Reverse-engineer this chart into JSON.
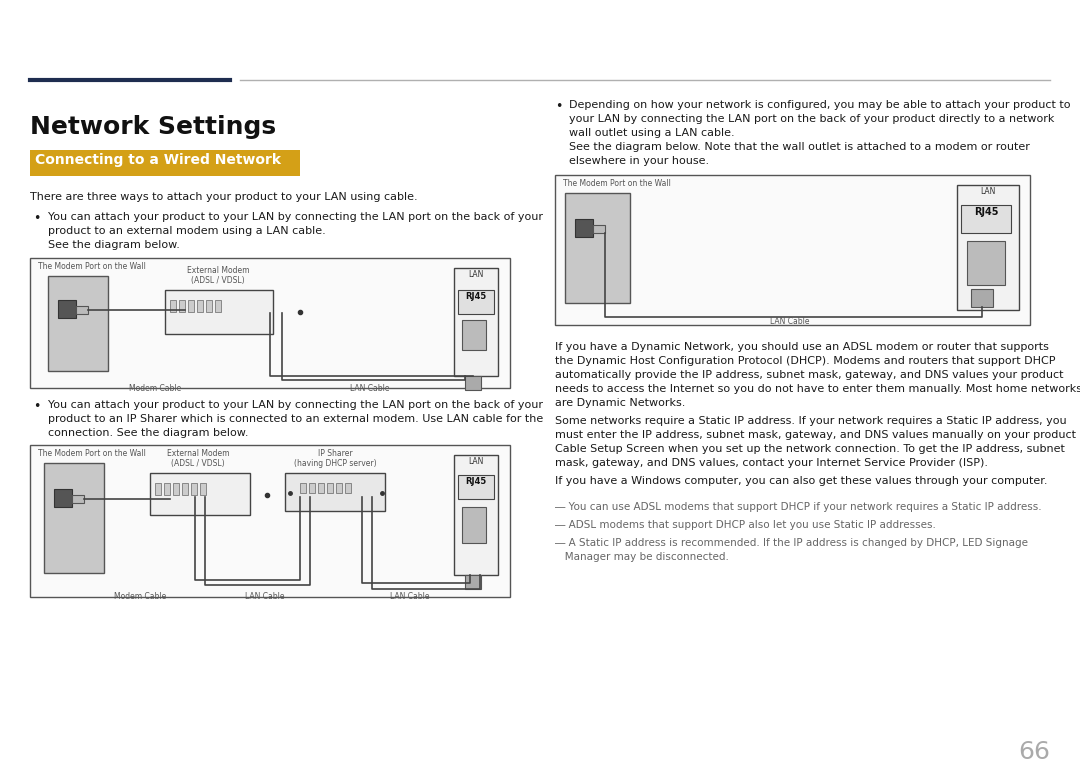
{
  "bg_color": "#ffffff",
  "title": "Network Settings",
  "subtitle": "Connecting to a Wired Network",
  "subtitle_bg": "#d4a017",
  "header_dark_color": "#1e2d4f",
  "header_light_color": "#b0b0b0",
  "body_color": "#1a1a1a",
  "note_color": "#666666",
  "page_number": "66",
  "diagram_border": "#555555",
  "wall_fill": "#c8c8c8",
  "wall_stroke": "#555555",
  "device_fill": "#eeeeee",
  "device_stroke": "#444444",
  "lan_fill": "#f2f2f2",
  "rj45_fill": "#e0e0e0",
  "cable_color": "#444444",
  "conn_fill": "#bbbbbb"
}
